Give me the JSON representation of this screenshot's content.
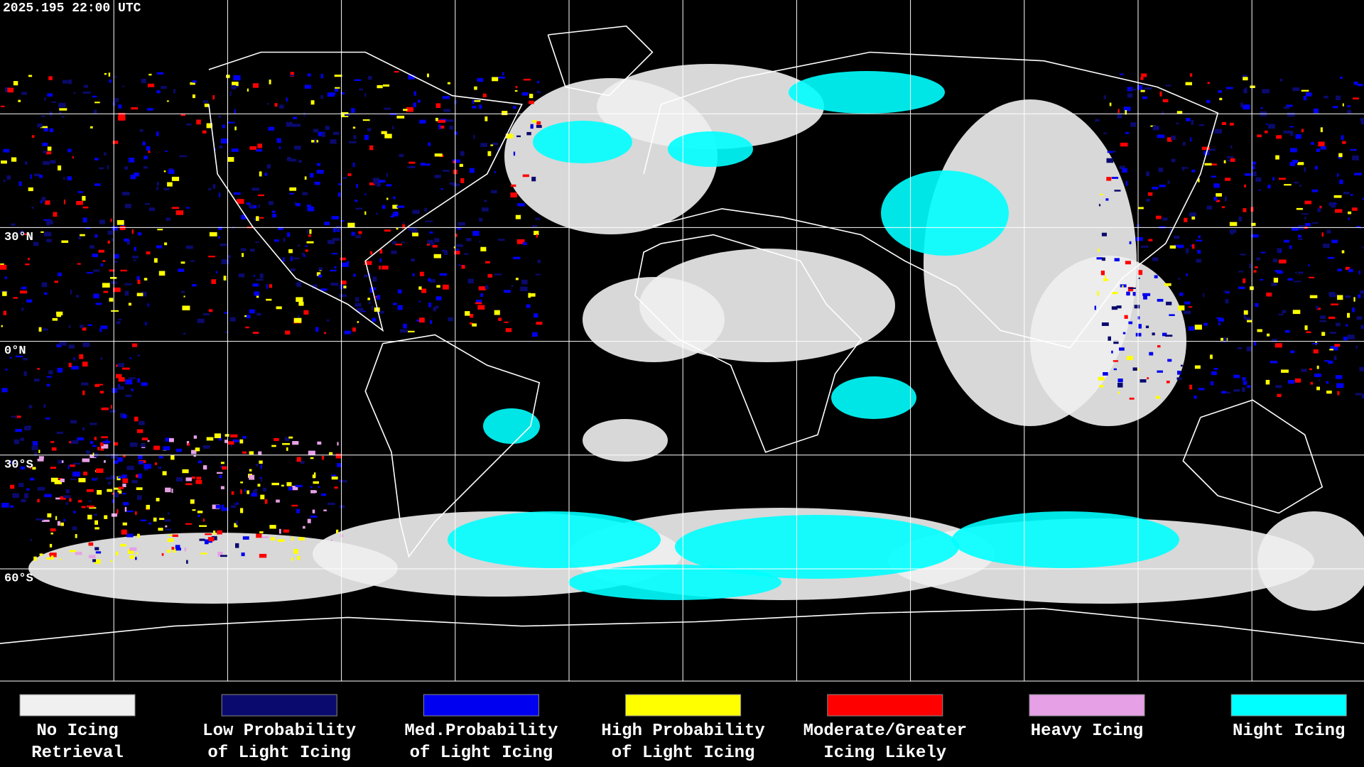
{
  "header": {
    "timestamp": "2025.195 22:00 UTC"
  },
  "map": {
    "latitude_labels": [
      "30°N",
      "0°N",
      "30°S",
      "60°S"
    ]
  },
  "legend": {
    "items": [
      {
        "lines": [
          "No Icing",
          "Retrieval"
        ],
        "color": "#f0f0f0"
      },
      {
        "lines": [
          "Low Probability",
          "of Light Icing"
        ],
        "color": "#0a0a6e"
      },
      {
        "lines": [
          "Med.Probability",
          "of Light Icing"
        ],
        "color": "#0000f0"
      },
      {
        "lines": [
          "High Probability",
          "of Light Icing"
        ],
        "color": "#ffff00"
      },
      {
        "lines": [
          "Moderate/Greater",
          "Icing Likely"
        ],
        "color": "#ff0000"
      },
      {
        "lines": [
          "Heavy Icing"
        ],
        "color": "#e6a0e6"
      },
      {
        "lines": [
          "Night Icing"
        ],
        "color": "#00ffff"
      }
    ]
  }
}
